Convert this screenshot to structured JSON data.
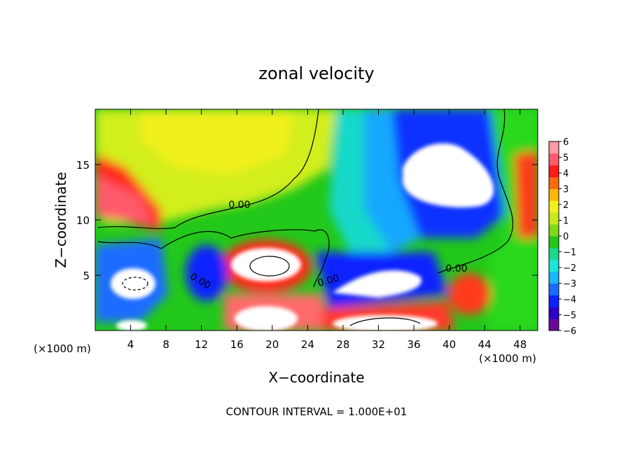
{
  "chart_data": {
    "type": "heatmap",
    "title": "zonal velocity",
    "xlabel": "X−coordinate",
    "ylabel": "Z−coordinate",
    "x_unit_left": "(×1000 m)",
    "x_unit_right": "(×1000 m)",
    "footer": "CONTOUR INTERVAL = 1.000E+01",
    "xlim": [
      0,
      50
    ],
    "ylim": [
      0,
      20
    ],
    "x_ticks": [
      4,
      8,
      12,
      16,
      20,
      24,
      28,
      32,
      36,
      40,
      44,
      48
    ],
    "x_tick_labels": [
      "4",
      "8",
      "12",
      "16",
      "20",
      "24",
      "28",
      "32",
      "36",
      "40",
      "44",
      "48"
    ],
    "y_ticks": [
      5,
      10,
      15
    ],
    "y_tick_labels": [
      "5",
      "10",
      "15"
    ],
    "colorbar": {
      "range": [
        -6,
        6
      ],
      "ticks": [
        6,
        5,
        4,
        3,
        2,
        1,
        0,
        -1,
        -2,
        -3,
        -4,
        -5,
        -6
      ],
      "tick_labels": [
        "6",
        "5",
        "4",
        "3",
        "2",
        "1",
        "0",
        "−1",
        "−2",
        "−3",
        "−4",
        "−5",
        "−6"
      ],
      "colors": [
        "#6a0a9c",
        "#2b00c8",
        "#0a22ff",
        "#1a6cff",
        "#17b6ff",
        "#19e6d6",
        "#19d98c",
        "#22c81a",
        "#7fd81a",
        "#c9ea1a",
        "#f0f01a",
        "#ffb60a",
        "#ff6a0a",
        "#ff1a1a",
        "#ff5a6a",
        "#ff9aa4"
      ]
    },
    "contour_labels": [
      "0.00",
      "0.00",
      "0.00",
      "0.00"
    ]
  }
}
